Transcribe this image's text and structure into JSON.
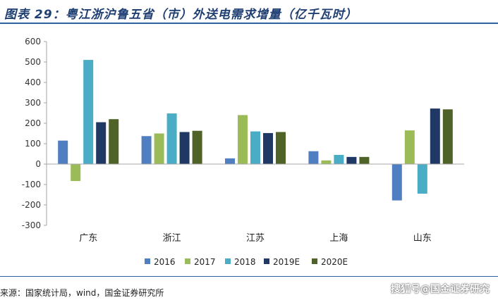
{
  "header": {
    "title": "图表 29：粤江浙沪鲁五省（市）外送电需求增量（亿千瓦时）"
  },
  "footer": {
    "source": "来源：国家统计局，wind，国金证券研究所",
    "watermark": "搜狐号@国金证券研究"
  },
  "chart_data": {
    "type": "bar",
    "title": "图表 29：粤江浙沪鲁五省（市）外送电需求增量（亿千瓦时）",
    "xlabel": "",
    "ylabel": "",
    "ylim": [
      -300,
      600
    ],
    "yticks": [
      600,
      500,
      400,
      300,
      200,
      100,
      0,
      -100,
      -200,
      -300
    ],
    "grid": false,
    "legend_position": "bottom",
    "categories": [
      "广东",
      "浙江",
      "江苏",
      "上海",
      "山东"
    ],
    "series": [
      {
        "name": "2016",
        "color": "#4f7ec1",
        "values": [
          115,
          137,
          28,
          63,
          -178
        ]
      },
      {
        "name": "2017",
        "color": "#9bbb59",
        "values": [
          -83,
          150,
          240,
          18,
          165
        ]
      },
      {
        "name": "2018",
        "color": "#4bacc6",
        "values": [
          510,
          248,
          160,
          45,
          -145
        ]
      },
      {
        "name": "2019E",
        "color": "#1f3864",
        "values": [
          205,
          157,
          152,
          35,
          272
        ]
      },
      {
        "name": "2020E",
        "color": "#4f6228",
        "values": [
          220,
          163,
          157,
          35,
          268
        ]
      }
    ]
  }
}
